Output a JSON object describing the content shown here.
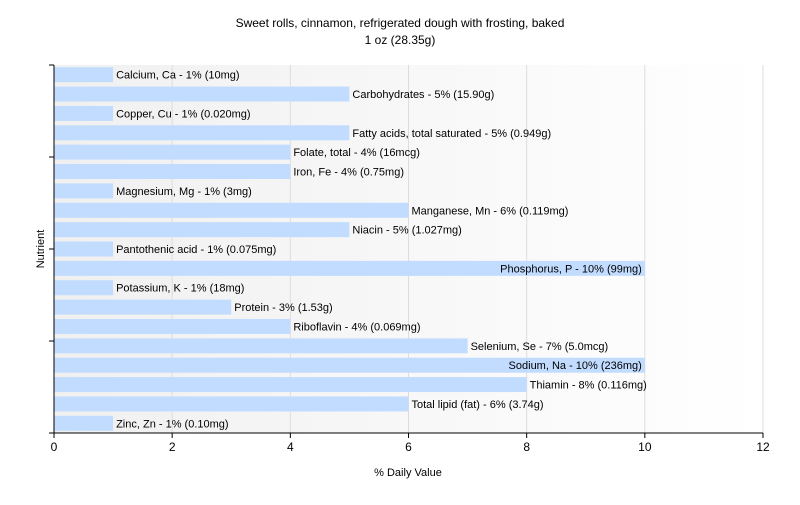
{
  "chart_data": {
    "type": "bar",
    "orientation": "horizontal",
    "title": "Sweet rolls, cinnamon, refrigerated dough with frosting, baked",
    "subtitle": "1 oz (28.35g)",
    "xlabel": "% Daily Value",
    "ylabel": "Nutrient",
    "xlim": [
      0,
      12
    ],
    "xticks": [
      0,
      2,
      4,
      6,
      8,
      10,
      12
    ],
    "grid": true,
    "bar_color": "#c2dcff",
    "categories": [
      "Calcium, Ca",
      "Carbohydrates",
      "Copper, Cu",
      "Fatty acids, total saturated",
      "Folate, total",
      "Iron, Fe",
      "Magnesium, Mg",
      "Manganese, Mn",
      "Niacin",
      "Pantothenic acid",
      "Phosphorus, P",
      "Potassium, K",
      "Protein",
      "Riboflavin",
      "Selenium, Se",
      "Sodium, Na",
      "Thiamin",
      "Total lipid (fat)",
      "Zinc, Zn"
    ],
    "values": [
      1,
      5,
      1,
      5,
      4,
      4,
      1,
      6,
      5,
      1,
      10,
      1,
      3,
      4,
      7,
      10,
      8,
      6,
      1
    ],
    "labels": [
      "Calcium, Ca - 1% (10mg)",
      "Carbohydrates - 5% (15.90g)",
      "Copper, Cu - 1% (0.020mg)",
      "Fatty acids, total saturated - 5% (0.949g)",
      "Folate, total - 4% (16mcg)",
      "Iron, Fe - 4% (0.75mg)",
      "Magnesium, Mg - 1% (3mg)",
      "Manganese, Mn - 6% (0.119mg)",
      "Niacin - 5% (1.027mg)",
      "Pantothenic acid - 1% (0.075mg)",
      "Phosphorus, P - 10% (99mg)",
      "Potassium, K - 1% (18mg)",
      "Protein - 3% (1.53g)",
      "Riboflavin - 4% (0.069mg)",
      "Selenium, Se - 7% (5.0mcg)",
      "Sodium, Na - 10% (236mg)",
      "Thiamin - 8% (0.116mg)",
      "Total lipid (fat) - 6% (3.74g)",
      "Zinc, Zn - 1% (0.10mg)"
    ]
  }
}
